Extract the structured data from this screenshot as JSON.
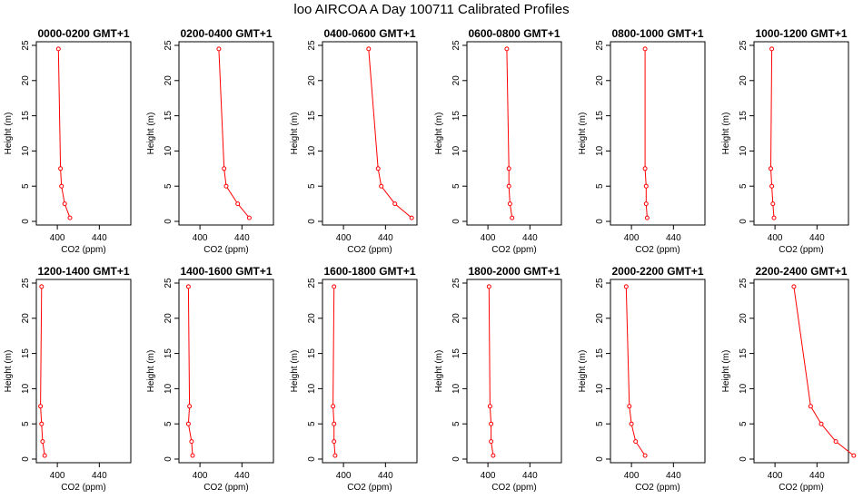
{
  "figure": {
    "title": "loo AIRCOA A  Day 100711  Calibrated Profiles"
  },
  "colors": {
    "profile": "#ff0000",
    "axis": "#000000"
  },
  "chart_data": [
    {
      "type": "line",
      "title": "0000-0200 GMT+1",
      "xlabel": "CO2 (ppm)",
      "ylabel": "Height (m)",
      "xlim": [
        380,
        470
      ],
      "ylim": [
        0,
        25
      ],
      "xticks": [
        400,
        440
      ],
      "yticks": [
        0,
        5,
        10,
        15,
        20,
        25
      ],
      "grid": false,
      "series": [
        {
          "x": [
            401,
            403,
            404,
            407,
            412
          ],
          "y": [
            24.5,
            7.5,
            5,
            2.5,
            0.5
          ]
        }
      ]
    },
    {
      "type": "line",
      "title": "0200-0400 GMT+1",
      "xlabel": "CO2 (ppm)",
      "ylabel": "Height (m)",
      "xlim": [
        380,
        470
      ],
      "ylim": [
        0,
        25
      ],
      "xticks": [
        400,
        440
      ],
      "yticks": [
        0,
        5,
        10,
        15,
        20,
        25
      ],
      "grid": false,
      "series": [
        {
          "x": [
            418,
            423,
            425,
            436,
            447
          ],
          "y": [
            24.5,
            7.5,
            5,
            2.5,
            0.5
          ]
        }
      ]
    },
    {
      "type": "line",
      "title": "0400-0600 GMT+1",
      "xlabel": "CO2 (ppm)",
      "ylabel": "Height (m)",
      "xlim": [
        380,
        470
      ],
      "ylim": [
        0,
        25
      ],
      "xticks": [
        400,
        440
      ],
      "yticks": [
        0,
        5,
        10,
        15,
        20,
        25
      ],
      "grid": false,
      "series": [
        {
          "x": [
            424,
            433,
            436,
            449,
            465
          ],
          "y": [
            24.5,
            7.5,
            5,
            2.5,
            0.5
          ]
        }
      ]
    },
    {
      "type": "line",
      "title": "0600-0800 GMT+1",
      "xlabel": "CO2 (ppm)",
      "ylabel": "Height (m)",
      "xlim": [
        380,
        470
      ],
      "ylim": [
        0,
        25
      ],
      "xticks": [
        400,
        440
      ],
      "yticks": [
        0,
        5,
        10,
        15,
        20,
        25
      ],
      "grid": false,
      "series": [
        {
          "x": [
            418,
            420,
            420,
            421,
            423
          ],
          "y": [
            24.5,
            7.5,
            5,
            2.5,
            0.5
          ]
        }
      ]
    },
    {
      "type": "line",
      "title": "0800-1000 GMT+1",
      "xlabel": "CO2 (ppm)",
      "ylabel": "Height (m)",
      "xlim": [
        380,
        470
      ],
      "ylim": [
        0,
        25
      ],
      "xticks": [
        400,
        440
      ],
      "yticks": [
        0,
        5,
        10,
        15,
        20,
        25
      ],
      "grid": false,
      "series": [
        {
          "x": [
            413,
            413,
            414,
            414,
            415
          ],
          "y": [
            24.5,
            7.5,
            5,
            2.5,
            0.5
          ]
        }
      ]
    },
    {
      "type": "line",
      "title": "1000-1200 GMT+1",
      "xlabel": "CO2 (ppm)",
      "ylabel": "Height (m)",
      "xlim": [
        380,
        470
      ],
      "ylim": [
        0,
        25
      ],
      "xticks": [
        400,
        440
      ],
      "yticks": [
        0,
        5,
        10,
        15,
        20,
        25
      ],
      "grid": false,
      "series": [
        {
          "x": [
            397,
            396,
            397,
            398,
            399
          ],
          "y": [
            24.5,
            7.5,
            5,
            2.5,
            0.5
          ]
        }
      ]
    },
    {
      "type": "line",
      "title": "1200-1400 GMT+1",
      "xlabel": "CO2 (ppm)",
      "ylabel": "Height (m)",
      "xlim": [
        380,
        470
      ],
      "ylim": [
        0,
        25
      ],
      "xticks": [
        400,
        440
      ],
      "yticks": [
        0,
        5,
        10,
        15,
        20,
        25
      ],
      "grid": false,
      "series": [
        {
          "x": [
            385,
            384,
            385,
            386,
            388
          ],
          "y": [
            24.5,
            7.5,
            5,
            2.5,
            0.5
          ]
        }
      ]
    },
    {
      "type": "line",
      "title": "1400-1600 GMT+1",
      "xlabel": "CO2 (ppm)",
      "ylabel": "Height (m)",
      "xlim": [
        380,
        470
      ],
      "ylim": [
        0,
        25
      ],
      "xticks": [
        400,
        440
      ],
      "yticks": [
        0,
        5,
        10,
        15,
        20,
        25
      ],
      "grid": false,
      "series": [
        {
          "x": [
            389,
            390,
            389,
            392,
            393
          ],
          "y": [
            24.5,
            7.5,
            5,
            2.5,
            0.5
          ]
        }
      ]
    },
    {
      "type": "line",
      "title": "1600-1800 GMT+1",
      "xlabel": "CO2 (ppm)",
      "ylabel": "Height (m)",
      "xlim": [
        380,
        470
      ],
      "ylim": [
        0,
        25
      ],
      "xticks": [
        400,
        440
      ],
      "yticks": [
        0,
        5,
        10,
        15,
        20,
        25
      ],
      "grid": false,
      "series": [
        {
          "x": [
            391,
            390,
            391,
            391,
            392
          ],
          "y": [
            24.5,
            7.5,
            5,
            2.5,
            0.5
          ]
        }
      ]
    },
    {
      "type": "line",
      "title": "1800-2000 GMT+1",
      "xlabel": "CO2 (ppm)",
      "ylabel": "Height (m)",
      "xlim": [
        380,
        470
      ],
      "ylim": [
        0,
        25
      ],
      "xticks": [
        400,
        440
      ],
      "yticks": [
        0,
        5,
        10,
        15,
        20,
        25
      ],
      "grid": false,
      "series": [
        {
          "x": [
            401,
            402,
            403,
            403,
            405
          ],
          "y": [
            24.5,
            7.5,
            5,
            2.5,
            0.5
          ]
        }
      ]
    },
    {
      "type": "line",
      "title": "2000-2200 GMT+1",
      "xlabel": "CO2 (ppm)",
      "ylabel": "Height (m)",
      "xlim": [
        380,
        470
      ],
      "ylim": [
        0,
        25
      ],
      "xticks": [
        400,
        440
      ],
      "yticks": [
        0,
        5,
        10,
        15,
        20,
        25
      ],
      "grid": false,
      "series": [
        {
          "x": [
            395,
            398,
            400,
            404,
            413
          ],
          "y": [
            24.5,
            7.5,
            5,
            2.5,
            0.5
          ]
        }
      ]
    },
    {
      "type": "line",
      "title": "2200-2400 GMT+1",
      "xlabel": "CO2 (ppm)",
      "ylabel": "Height (m)",
      "xlim": [
        380,
        470
      ],
      "ylim": [
        0,
        25
      ],
      "xticks": [
        400,
        440
      ],
      "yticks": [
        0,
        5,
        10,
        15,
        20,
        25
      ],
      "grid": false,
      "series": [
        {
          "x": [
            418,
            434,
            444,
            458,
            475
          ],
          "y": [
            24.5,
            7.5,
            5,
            2.5,
            0.5
          ]
        }
      ]
    }
  ]
}
